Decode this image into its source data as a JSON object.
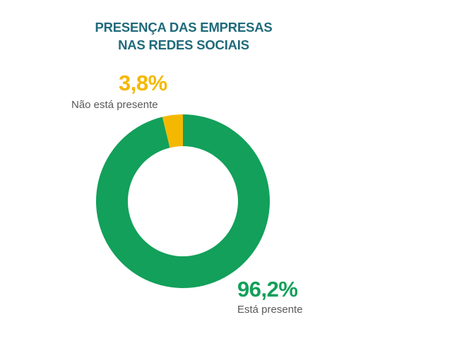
{
  "chart_data": {
    "type": "pie",
    "style": "donut",
    "title_lines": [
      "PRESENÇA DAS EMPRESAS",
      "NAS REDES SOCIAIS"
    ],
    "slices": [
      {
        "label": "Está presente",
        "value": 96.2,
        "value_label": "96,2%",
        "color": "#12a05a"
      },
      {
        "label": "Não está presente",
        "value": 3.8,
        "value_label": "3,8%",
        "color": "#f5b800"
      }
    ]
  },
  "colors": {
    "title": "#1f6a7a",
    "label_text": "#595959"
  }
}
